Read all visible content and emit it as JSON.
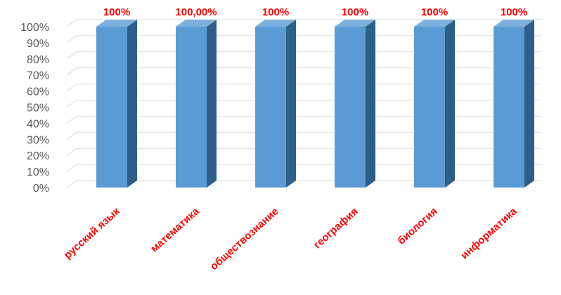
{
  "chart_data": {
    "type": "bar",
    "categories": [
      "русский язык",
      "математика",
      "обществознание",
      "география",
      "биология",
      "информатика"
    ],
    "values": [
      100,
      100,
      100,
      100,
      100,
      100
    ],
    "data_labels": [
      "100%",
      "100,00%",
      "100%",
      "100%",
      "100%",
      "100%"
    ],
    "y_ticks": [
      "0%",
      "10%",
      "20%",
      "30%",
      "40%",
      "50%",
      "60%",
      "70%",
      "80%",
      "90%",
      "100%"
    ],
    "ylim": [
      0,
      100
    ],
    "grid": true,
    "legend": "none",
    "style": "3d-column"
  },
  "colors": {
    "bar_front": "#5b9bd5",
    "bar_side": "#2e5f8a",
    "bar_top": "#7eb0de",
    "labels": "#ff0000",
    "grid": "#d9d9d9",
    "tick_text": "#595959"
  }
}
